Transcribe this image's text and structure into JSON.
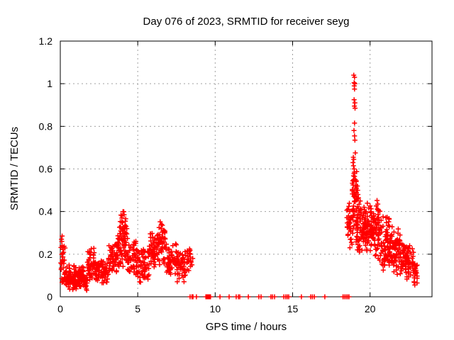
{
  "chart_data": {
    "type": "scatter",
    "title": "Day 076 of 2023, SRMTID for receiver seyg",
    "xlabel": "GPS time / hours",
    "ylabel": "SRMTID / TECUs",
    "xlim": [
      0,
      24
    ],
    "ylim": [
      0,
      1.2
    ],
    "xticks": {
      "values": [
        0,
        5,
        10,
        15,
        20
      ],
      "labels": [
        "0",
        "5",
        "10",
        "15",
        "20"
      ]
    },
    "yticks": {
      "values": [
        0,
        0.2,
        0.4,
        0.6,
        0.8,
        1,
        1.2
      ],
      "labels": [
        "0",
        "0.2",
        "0.4",
        "0.6",
        "0.8",
        "1",
        "1.2"
      ]
    },
    "grid": {
      "show": true,
      "color": "#a0a0a0",
      "dash": "2,4"
    },
    "border_color": "#000000",
    "background": "#ffffff",
    "legend": {
      "show": false
    },
    "marker": {
      "shape": "plus",
      "color": "#ff0000",
      "size": 7
    },
    "series_name": "SRMTID",
    "seed": 2023076,
    "point_bands": [
      [
        0.03,
        0.35,
        0.05,
        0.29,
        28
      ],
      [
        0.2,
        0.6,
        0.04,
        0.18,
        30
      ],
      [
        0.5,
        1.75,
        0.03,
        0.12,
        110
      ],
      [
        0.8,
        1.6,
        0.08,
        0.15,
        30
      ],
      [
        1.75,
        2.25,
        0.08,
        0.23,
        45
      ],
      [
        2.25,
        3.1,
        0.06,
        0.17,
        70
      ],
      [
        3.1,
        3.65,
        0.1,
        0.26,
        50
      ],
      [
        3.65,
        4.35,
        0.13,
        0.34,
        60
      ],
      [
        3.8,
        4.3,
        0.25,
        0.4,
        25
      ],
      [
        4.35,
        5.0,
        0.09,
        0.27,
        55
      ],
      [
        5.0,
        5.75,
        0.05,
        0.25,
        60
      ],
      [
        5.75,
        6.25,
        0.12,
        0.3,
        50
      ],
      [
        6.25,
        6.8,
        0.14,
        0.35,
        50
      ],
      [
        6.8,
        7.5,
        0.09,
        0.26,
        55
      ],
      [
        7.5,
        8.1,
        0.07,
        0.22,
        50
      ],
      [
        8.1,
        8.45,
        0.1,
        0.26,
        25
      ],
      [
        18.5,
        18.9,
        0.22,
        0.44,
        35
      ],
      [
        18.85,
        19.2,
        0.28,
        0.6,
        45
      ],
      [
        19.1,
        19.65,
        0.2,
        0.46,
        65
      ],
      [
        19.65,
        20.3,
        0.2,
        0.44,
        80
      ],
      [
        20.3,
        20.75,
        0.17,
        0.43,
        55
      ],
      [
        20.75,
        21.35,
        0.12,
        0.38,
        70
      ],
      [
        21.35,
        21.95,
        0.1,
        0.33,
        70
      ],
      [
        21.95,
        22.45,
        0.07,
        0.26,
        50
      ],
      [
        22.45,
        22.8,
        0.09,
        0.24,
        30
      ],
      [
        22.8,
        23.05,
        0.05,
        0.16,
        22
      ]
    ],
    "spike_points": [
      [
        18.95,
        1.04
      ],
      [
        19.0,
        1.03
      ],
      [
        18.97,
        1.005
      ],
      [
        19.02,
        1.0
      ],
      [
        18.98,
        0.99
      ],
      [
        19.0,
        0.975
      ],
      [
        18.97,
        0.925
      ],
      [
        19.02,
        0.91
      ],
      [
        18.99,
        0.895
      ],
      [
        19.03,
        0.885
      ],
      [
        19.0,
        0.815
      ],
      [
        18.96,
        0.78
      ],
      [
        19.0,
        0.755
      ],
      [
        19.02,
        0.735
      ],
      [
        19.05,
        0.675
      ],
      [
        18.92,
        0.655
      ],
      [
        18.95,
        0.645
      ],
      [
        18.9,
        0.63
      ],
      [
        18.93,
        0.615
      ],
      [
        18.97,
        0.6
      ],
      [
        18.99,
        0.585
      ],
      [
        19.0,
        0.565
      ],
      [
        19.05,
        0.55
      ],
      [
        19.1,
        0.54
      ],
      [
        19.08,
        0.525
      ],
      [
        19.12,
        0.51
      ],
      [
        19.15,
        0.5
      ],
      [
        19.1,
        0.49
      ],
      [
        19.18,
        0.52
      ],
      [
        19.2,
        0.5
      ],
      [
        19.22,
        0.48
      ],
      [
        19.25,
        0.465
      ]
    ],
    "extra_points": [
      [
        4.05,
        0.4
      ],
      [
        4.12,
        0.385
      ],
      [
        3.98,
        0.37
      ],
      [
        4.2,
        0.355
      ],
      [
        6.45,
        0.352
      ],
      [
        6.52,
        0.34
      ],
      [
        6.38,
        0.325
      ],
      [
        20.45,
        0.452
      ],
      [
        20.5,
        0.435
      ],
      [
        2.0,
        0.225
      ],
      [
        0.12,
        0.285
      ],
      [
        0.08,
        0.27
      ],
      [
        8.55,
        0.18
      ],
      [
        8.5,
        0.15
      ]
    ],
    "zero_line_xs": [
      8.38,
      8.5,
      8.57,
      8.79,
      9.4,
      9.45,
      9.5,
      9.55,
      9.6,
      9.65,
      9.7,
      10.31,
      10.9,
      11.36,
      11.5,
      11.59,
      12.14,
      12.82,
      12.96,
      13.6,
      13.7,
      13.83,
      14.43,
      14.55,
      14.65,
      14.75,
      15.57,
      16.17,
      16.28,
      16.4,
      17.08,
      18.25,
      18.35,
      18.45,
      18.55,
      18.64
    ]
  }
}
